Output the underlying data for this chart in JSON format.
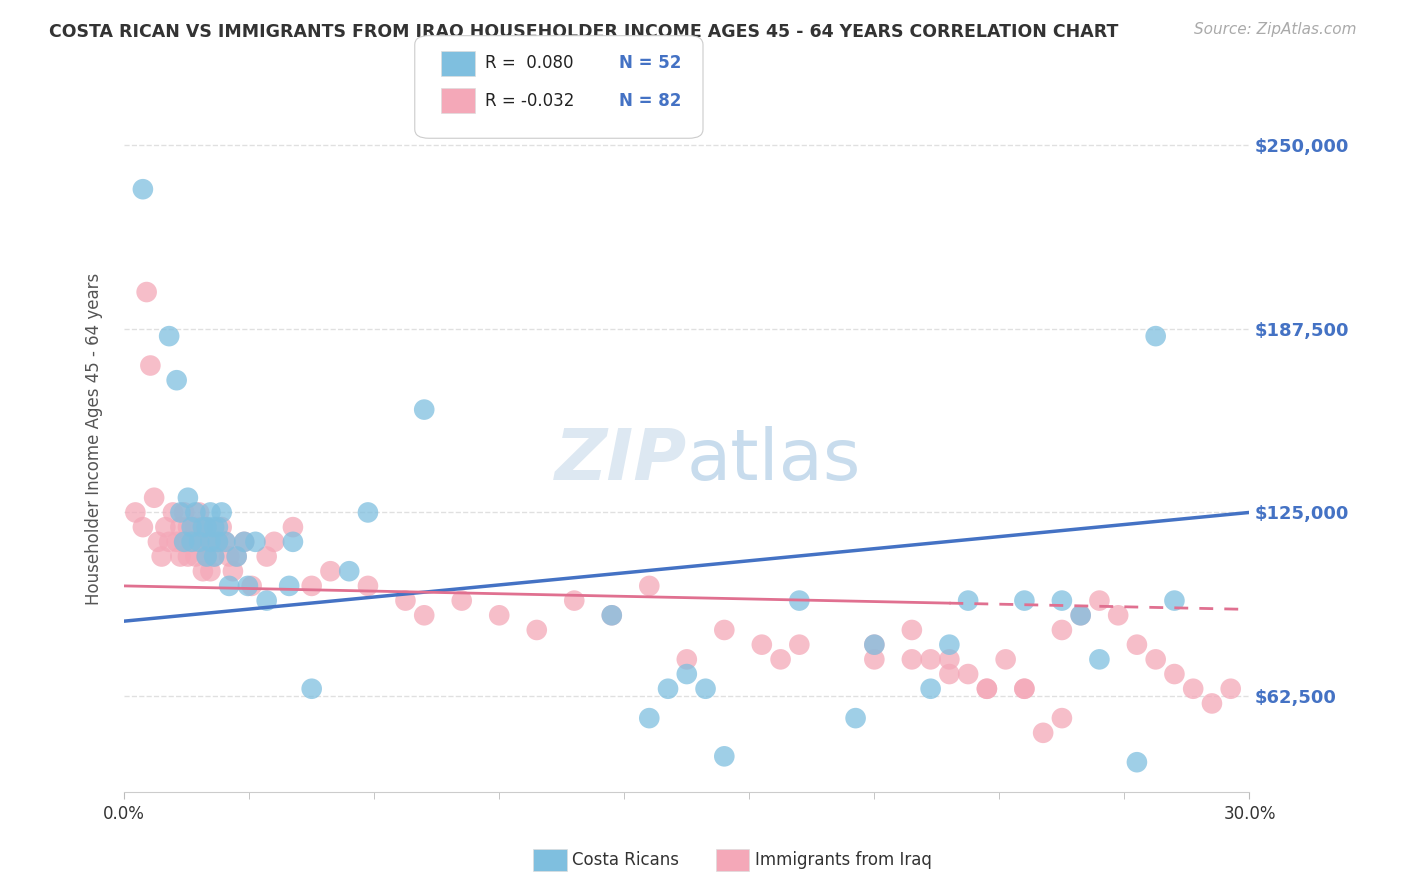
{
  "title": "COSTA RICAN VS IMMIGRANTS FROM IRAQ HOUSEHOLDER INCOME AGES 45 - 64 YEARS CORRELATION CHART",
  "source": "Source: ZipAtlas.com",
  "ylabel": "Householder Income Ages 45 - 64 years",
  "yticks": [
    62500,
    125000,
    187500,
    250000
  ],
  "ytick_labels": [
    "$62,500",
    "$125,000",
    "$187,500",
    "$250,000"
  ],
  "xmin": 0.0,
  "xmax": 0.3,
  "ymin": 30000,
  "ymax": 270000,
  "cr_color": "#7fbfdf",
  "cr_line_color": "#4472c4",
  "iraq_color": "#f4a8b8",
  "iraq_line_color": "#e07090",
  "background_color": "#ffffff",
  "grid_color": "#dddddd",
  "costa_ricans_label": "Costa Ricans",
  "iraq_label": "Immigrants from Iraq",
  "legend_r1": "0.080",
  "legend_r2": "-0.032",
  "legend_n1": "52",
  "legend_n2": "82",
  "watermark": "ZIPatlas",
  "cr_line_y0": 88000,
  "cr_line_y1": 125000,
  "iraq_line_y0": 100000,
  "iraq_line_y1": 92000,
  "cr_points_x": [
    0.005,
    0.012,
    0.014,
    0.015,
    0.016,
    0.017,
    0.018,
    0.018,
    0.019,
    0.02,
    0.021,
    0.022,
    0.022,
    0.023,
    0.023,
    0.024,
    0.024,
    0.025,
    0.025,
    0.026,
    0.027,
    0.028,
    0.03,
    0.032,
    0.033,
    0.035,
    0.038,
    0.044,
    0.045,
    0.05,
    0.06,
    0.065,
    0.08,
    0.13,
    0.14,
    0.145,
    0.15,
    0.155,
    0.16,
    0.18,
    0.195,
    0.2,
    0.215,
    0.22,
    0.225,
    0.24,
    0.25,
    0.255,
    0.26,
    0.27,
    0.275,
    0.28
  ],
  "cr_points_y": [
    235000,
    185000,
    170000,
    125000,
    115000,
    130000,
    115000,
    120000,
    125000,
    115000,
    120000,
    120000,
    110000,
    115000,
    125000,
    110000,
    120000,
    115000,
    120000,
    125000,
    115000,
    100000,
    110000,
    115000,
    100000,
    115000,
    95000,
    100000,
    115000,
    65000,
    105000,
    125000,
    160000,
    90000,
    55000,
    65000,
    70000,
    65000,
    42000,
    95000,
    55000,
    80000,
    65000,
    80000,
    95000,
    95000,
    95000,
    90000,
    75000,
    40000,
    185000,
    95000
  ],
  "iraq_points_x": [
    0.003,
    0.005,
    0.006,
    0.007,
    0.008,
    0.009,
    0.01,
    0.011,
    0.012,
    0.013,
    0.014,
    0.015,
    0.015,
    0.016,
    0.016,
    0.017,
    0.017,
    0.018,
    0.018,
    0.019,
    0.019,
    0.02,
    0.02,
    0.021,
    0.021,
    0.022,
    0.022,
    0.023,
    0.023,
    0.024,
    0.025,
    0.026,
    0.027,
    0.028,
    0.029,
    0.03,
    0.032,
    0.034,
    0.038,
    0.04,
    0.045,
    0.05,
    0.055,
    0.065,
    0.075,
    0.08,
    0.09,
    0.1,
    0.11,
    0.12,
    0.13,
    0.14,
    0.15,
    0.16,
    0.17,
    0.175,
    0.18,
    0.2,
    0.21,
    0.22,
    0.23,
    0.24,
    0.245,
    0.25,
    0.255,
    0.26,
    0.265,
    0.27,
    0.275,
    0.28,
    0.285,
    0.29,
    0.295,
    0.2,
    0.21,
    0.215,
    0.22,
    0.225,
    0.23,
    0.235,
    0.24,
    0.25
  ],
  "iraq_points_y": [
    125000,
    120000,
    200000,
    175000,
    130000,
    115000,
    110000,
    120000,
    115000,
    125000,
    115000,
    110000,
    120000,
    125000,
    115000,
    120000,
    110000,
    115000,
    115000,
    120000,
    110000,
    125000,
    115000,
    115000,
    105000,
    120000,
    110000,
    115000,
    105000,
    110000,
    115000,
    120000,
    115000,
    110000,
    105000,
    110000,
    115000,
    100000,
    110000,
    115000,
    120000,
    100000,
    105000,
    100000,
    95000,
    90000,
    95000,
    90000,
    85000,
    95000,
    90000,
    100000,
    75000,
    85000,
    80000,
    75000,
    80000,
    75000,
    75000,
    70000,
    65000,
    65000,
    50000,
    85000,
    90000,
    95000,
    90000,
    80000,
    75000,
    70000,
    65000,
    60000,
    65000,
    80000,
    85000,
    75000,
    75000,
    70000,
    65000,
    75000,
    65000,
    55000
  ]
}
